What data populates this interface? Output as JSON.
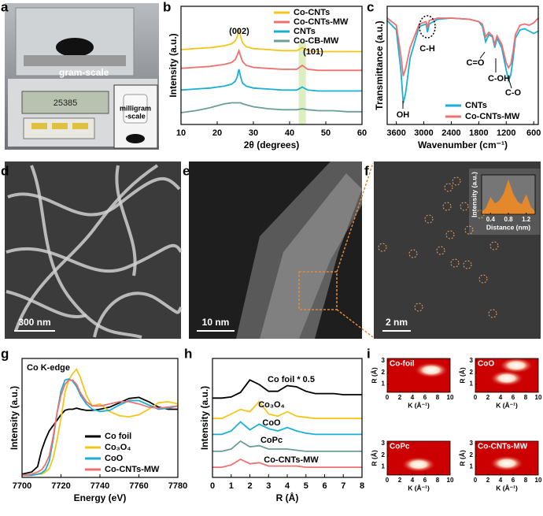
{
  "panel_labels": [
    "a",
    "b",
    "c",
    "d",
    "e",
    "f",
    "g",
    "h",
    "i"
  ],
  "photo_texts": {
    "gram_scale": "gram-scale",
    "milligram_scale": [
      "milligram",
      "-scale"
    ],
    "display": "25385",
    "scale_d": "300 nm",
    "scale_e": "10 nm",
    "scale_f": "2 nm"
  },
  "chart_data": [
    {
      "type": "line",
      "xlabel": "2θ (degrees)",
      "ylabel": "Intensity (a.u.)",
      "x": [
        10,
        14,
        18,
        20,
        22,
        24,
        25,
        25.5,
        26,
        26.5,
        27,
        28,
        30,
        34,
        38,
        42,
        43.5,
        45,
        48,
        52,
        56,
        60
      ],
      "series": [
        {
          "name": "Co-CNTs",
          "color": "#f5c518",
          "values": [
            7.6,
            7.7,
            7.8,
            7.9,
            8.0,
            8.2,
            8.5,
            8.9,
            9.6,
            8.9,
            8.3,
            7.9,
            7.7,
            7.6,
            7.5,
            7.5,
            7.8,
            7.5,
            7.4,
            7.4,
            7.4,
            7.4
          ]
        },
        {
          "name": "Co-CNTs-MW",
          "color": "#f07070",
          "values": [
            5.7,
            5.8,
            5.9,
            6.0,
            6.1,
            6.3,
            6.6,
            7.0,
            7.5,
            6.9,
            6.4,
            6.0,
            5.8,
            5.7,
            5.6,
            5.6,
            6.0,
            5.6,
            5.5,
            5.5,
            5.5,
            5.5
          ]
        },
        {
          "name": "CNTs",
          "color": "#1aafd6",
          "values": [
            3.5,
            3.6,
            3.7,
            3.8,
            3.9,
            4.1,
            4.4,
            4.8,
            5.6,
            4.8,
            4.2,
            3.9,
            3.7,
            3.6,
            3.5,
            3.5,
            3.8,
            3.5,
            3.4,
            3.4,
            3.4,
            3.4
          ]
        },
        {
          "name": "Co-CB-MW",
          "color": "#6b9e96",
          "values": [
            1.2,
            1.4,
            1.7,
            1.9,
            2.1,
            2.2,
            2.2,
            2.2,
            2.2,
            2.2,
            2.1,
            2.0,
            1.8,
            1.6,
            1.5,
            1.5,
            1.6,
            1.5,
            1.4,
            1.4,
            1.3,
            1.3
          ]
        }
      ],
      "shade_x": [
        42.5,
        44.5
      ],
      "annotations": [
        "(002)",
        "(101)"
      ],
      "xlim": [
        10,
        60
      ],
      "ylim": [
        0,
        12
      ],
      "xticks": [
        10,
        20,
        30,
        40,
        50,
        60
      ],
      "legend": "upper right"
    },
    {
      "type": "line",
      "xlabel": "Wavenumber (cm⁻¹)",
      "ylabel": "Transmittance (a.u.)",
      "x": [
        3800,
        3600,
        3500,
        3450,
        3400,
        3300,
        3100,
        2950,
        2920,
        2880,
        2700,
        2400,
        2000,
        1800,
        1720,
        1650,
        1580,
        1500,
        1450,
        1400,
        1300,
        1200,
        1150,
        1100,
        1050,
        1000,
        900,
        800,
        700,
        600,
        500
      ],
      "series": [
        {
          "name": "CNTs",
          "color": "#1aafd6",
          "values": [
            8.8,
            8.0,
            4.5,
            1.8,
            2.6,
            5.6,
            8.3,
            8.5,
            7.8,
            8.5,
            8.9,
            9.0,
            8.9,
            8.7,
            8.3,
            7.0,
            7.6,
            7.4,
            6.5,
            7.3,
            6.5,
            4.6,
            3.7,
            4.2,
            5.6,
            7.3,
            8.0,
            8.1,
            7.9,
            7.7,
            7.9
          ]
        },
        {
          "name": "Co-CNTs-MW",
          "color": "#f07070",
          "values": [
            9.0,
            8.4,
            5.8,
            4.1,
            4.7,
            6.5,
            8.5,
            8.7,
            8.2,
            8.8,
            9.0,
            9.0,
            8.9,
            8.7,
            8.5,
            7.4,
            7.8,
            7.5,
            6.8,
            7.5,
            6.8,
            5.2,
            4.8,
            5.1,
            6.2,
            7.6,
            8.4,
            8.5,
            8.4,
            8.6,
            9.0
          ]
        }
      ],
      "annotations": [
        "OH",
        "C-H",
        "C=O",
        "C-OH",
        "C-O"
      ],
      "xlim": [
        3800,
        500
      ],
      "ylim": [
        0,
        10
      ],
      "xticks": [
        3600,
        3000,
        2400,
        1800,
        1200,
        600
      ],
      "legend": "lower right"
    },
    {
      "type": "area",
      "xlabel": "Distance (nm)",
      "ylabel": "Intensity (a.u.)",
      "x": [
        0.2,
        0.3,
        0.4,
        0.5,
        0.6,
        0.7,
        0.8,
        0.9,
        1.0,
        1.1,
        1.2,
        1.3,
        1.4
      ],
      "series": [
        {
          "color": "#f08a24",
          "values": [
            0.5,
            1.5,
            4.2,
            2.6,
            3.4,
            5.2,
            8.5,
            5.2,
            3.2,
            2.4,
            4.8,
            1.8,
            0.5
          ]
        }
      ],
      "xlim": [
        0.2,
        1.4
      ],
      "ylim": [
        0,
        10
      ],
      "xticks": [
        0.4,
        0.8,
        1.2
      ]
    },
    {
      "type": "line",
      "xlabel": "Energy (eV)",
      "ylabel": "Intensity (a.u.)",
      "x": [
        7700,
        7705,
        7708,
        7710,
        7712,
        7714,
        7716,
        7718,
        7720,
        7722,
        7724,
        7726,
        7728,
        7730,
        7733,
        7736,
        7740,
        7745,
        7750,
        7755,
        7760,
        7765,
        7770,
        7775,
        7780
      ],
      "series": [
        {
          "name": "Co foil",
          "color": "#000000",
          "values": [
            0.3,
            0.5,
            1.0,
            2.5,
            3.5,
            4.3,
            4.8,
            5.3,
            5.8,
            6.2,
            6.3,
            6.3,
            6.4,
            6.3,
            6.2,
            6.2,
            6.3,
            6.5,
            6.9,
            7.3,
            7.4,
            7.0,
            6.5,
            6.3,
            6.3
          ]
        },
        {
          "name": "Co₃O₄",
          "color": "#f5c518",
          "values": [
            0.2,
            0.2,
            0.3,
            0.3,
            0.5,
            0.8,
            1.8,
            3.5,
            5.5,
            7.8,
            9.0,
            9.6,
            10.0,
            9.2,
            7.6,
            6.6,
            6.8,
            6.1,
            5.7,
            5.6,
            5.8,
            6.3,
            6.9,
            7.0,
            6.8
          ]
        },
        {
          "name": "CoO",
          "color": "#1aafd6",
          "values": [
            0.2,
            0.2,
            0.3,
            0.4,
            0.7,
            1.5,
            3.5,
            6.0,
            8.0,
            9.0,
            9.1,
            8.9,
            8.4,
            7.6,
            6.8,
            6.3,
            6.1,
            6.2,
            6.7,
            7.1,
            7.1,
            6.7,
            6.3,
            6.4,
            6.6
          ]
        },
        {
          "name": "Co-CNTs-MW",
          "color": "#f07070",
          "values": [
            0.2,
            0.3,
            0.5,
            0.7,
            1.2,
            2.0,
            3.8,
            6.0,
            7.6,
            8.6,
            9.0,
            9.0,
            8.6,
            7.8,
            7.0,
            6.6,
            6.6,
            6.8,
            7.0,
            7.0,
            6.8,
            6.5,
            6.4,
            6.5,
            6.6
          ]
        }
      ],
      "annotations": [
        "Co K-edge"
      ],
      "xlim": [
        7700,
        7780
      ],
      "ylim": [
        0,
        11
      ],
      "xticks": [
        7700,
        7720,
        7740,
        7760,
        7780
      ],
      "legend": "lower right"
    },
    {
      "type": "line",
      "xlabel": "R (Å)",
      "ylabel": "Intensity (a.u.)",
      "x": [
        0,
        0.5,
        1,
        1.5,
        2,
        2.5,
        3,
        3.5,
        4,
        4.5,
        5,
        5.5,
        6,
        6.5,
        7,
        7.5,
        8
      ],
      "series": [
        {
          "name": "Co foil * 0.5",
          "color": "#000000",
          "values": [
            7.0,
            7.0,
            7.1,
            7.5,
            8.6,
            8.2,
            7.6,
            7.6,
            8.1,
            8.0,
            7.6,
            7.4,
            7.4,
            7.4,
            7.3,
            7.3,
            7.3
          ]
        },
        {
          "name": "Co₃O₄",
          "color": "#f5c518",
          "values": [
            5.2,
            5.2,
            5.6,
            6.0,
            5.8,
            6.7,
            5.6,
            5.4,
            5.8,
            5.4,
            5.3,
            5.2,
            5.2,
            5.2,
            5.2,
            5.2,
            5.2
          ]
        },
        {
          "name": "CoO",
          "color": "#1aafd6",
          "values": [
            3.8,
            3.8,
            4.1,
            4.9,
            4.2,
            4.7,
            4.3,
            4.1,
            4.4,
            4.1,
            3.9,
            3.8,
            3.8,
            3.8,
            3.8,
            3.8,
            3.8
          ]
        },
        {
          "name": "CoPc",
          "color": "#6b9e96",
          "values": [
            2.3,
            2.3,
            2.5,
            3.2,
            2.7,
            2.8,
            2.5,
            2.5,
            2.5,
            2.4,
            2.3,
            2.3,
            2.3,
            2.3,
            2.3,
            2.3,
            2.3
          ]
        },
        {
          "name": "Co-CNTs-MW",
          "color": "#f07070",
          "values": [
            0.9,
            0.9,
            1.1,
            1.6,
            1.2,
            1.3,
            1.0,
            1.0,
            1.0,
            1.0,
            0.9,
            0.9,
            0.9,
            0.9,
            0.9,
            0.9,
            0.9
          ]
        }
      ],
      "xlim": [
        0,
        8
      ],
      "ylim": [
        0,
        10.5
      ],
      "xticks": [
        0,
        1,
        2,
        3,
        4,
        5,
        6,
        7,
        8
      ],
      "legend": "inline"
    },
    {
      "type": "heatmap",
      "title": "Co-foil",
      "xlabel": "K (Å⁻¹)",
      "ylabel": "R (Å)",
      "peaks": [
        [
          7,
          2.2
        ]
      ],
      "xlim": [
        0,
        10
      ],
      "ylim": [
        0.3,
        3.2
      ],
      "xticks": [
        0,
        2,
        4,
        6,
        8,
        10
      ],
      "yticks": [
        1,
        2,
        3
      ]
    },
    {
      "type": "heatmap",
      "title": "CoO",
      "xlabel": "K (Å⁻¹)",
      "ylabel": "R (Å)",
      "peaks": [
        [
          5,
          1.5
        ],
        [
          6.5,
          2.6
        ]
      ],
      "xlim": [
        0,
        10
      ],
      "ylim": [
        0.3,
        3.2
      ],
      "xticks": [
        0,
        2,
        4,
        6,
        8,
        10
      ],
      "yticks": [
        1,
        2,
        3
      ]
    },
    {
      "type": "heatmap",
      "title": "CoPc",
      "xlabel": "K (Å⁻¹)",
      "ylabel": "R (Å)",
      "peaks": [
        [
          5,
          1.2
        ]
      ],
      "xlim": [
        0,
        10
      ],
      "ylim": [
        0.3,
        3.2
      ],
      "xticks": [
        0,
        2,
        4,
        6,
        8,
        10
      ],
      "yticks": [
        1,
        2,
        3
      ]
    },
    {
      "type": "heatmap",
      "title": "Co-CNTs-MW",
      "xlabel": "K (Å⁻¹)",
      "ylabel": "R (Å)",
      "peaks": [
        [
          5,
          1.3
        ]
      ],
      "xlim": [
        0,
        10
      ],
      "ylim": [
        0.3,
        3.2
      ],
      "xticks": [
        0,
        2,
        4,
        6,
        8,
        10
      ],
      "yticks": [
        1,
        2,
        3
      ]
    }
  ]
}
